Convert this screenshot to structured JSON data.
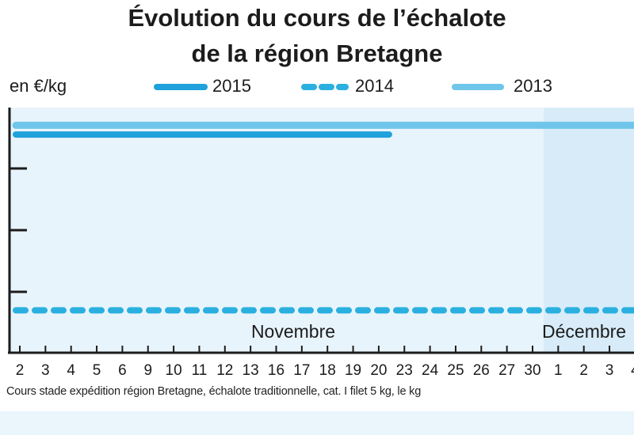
{
  "chart_data": {
    "type": "line",
    "title": "Évolution du cours de l’échalote",
    "subtitle": "de la région Bretagne",
    "ylabel": "en €/kg",
    "months": [
      {
        "label": "Novembre",
        "start_index": 0,
        "end_index": 20
      },
      {
        "label": "Décembre",
        "start_index": 21,
        "end_index": 24
      }
    ],
    "categories": [
      "2",
      "3",
      "4",
      "5",
      "6",
      "9",
      "10",
      "11",
      "12",
      "13",
      "16",
      "17",
      "18",
      "19",
      "20",
      "23",
      "24",
      "25",
      "26",
      "27",
      "30",
      "1",
      "2",
      "3",
      "4"
    ],
    "ylim": [
      0,
      4
    ],
    "series": [
      {
        "name": "2015",
        "style": "solid",
        "color": "#1fa1dc",
        "values": [
          3.55,
          3.55,
          3.55,
          3.55,
          3.55,
          3.55,
          3.55,
          3.55,
          3.55,
          3.55,
          3.55,
          3.55,
          3.55,
          3.55,
          3.55,
          null,
          null,
          null,
          null,
          null,
          null,
          null,
          null,
          null,
          null
        ]
      },
      {
        "name": "2014",
        "style": "dashed",
        "color": "#2ab0e0",
        "values": [
          0.7,
          0.7,
          0.7,
          0.7,
          0.7,
          0.7,
          0.7,
          0.7,
          0.7,
          0.7,
          0.7,
          0.7,
          0.7,
          0.7,
          0.7,
          0.7,
          0.7,
          0.7,
          0.7,
          0.7,
          0.7,
          0.7,
          0.7,
          0.7,
          0.7
        ]
      },
      {
        "name": "2013",
        "style": "solid",
        "color": "#6fc6ea",
        "values": [
          3.7,
          3.7,
          3.7,
          3.7,
          3.7,
          3.7,
          3.7,
          3.7,
          3.7,
          3.7,
          3.7,
          3.7,
          3.7,
          3.7,
          3.7,
          3.7,
          3.7,
          3.7,
          3.7,
          3.7,
          3.7,
          3.7,
          3.7,
          3.7,
          3.7
        ]
      }
    ],
    "footnote": "Cours stade expédition région Bretagne, échalote traditionnelle, cat. I filet 5 kg, le kg"
  }
}
